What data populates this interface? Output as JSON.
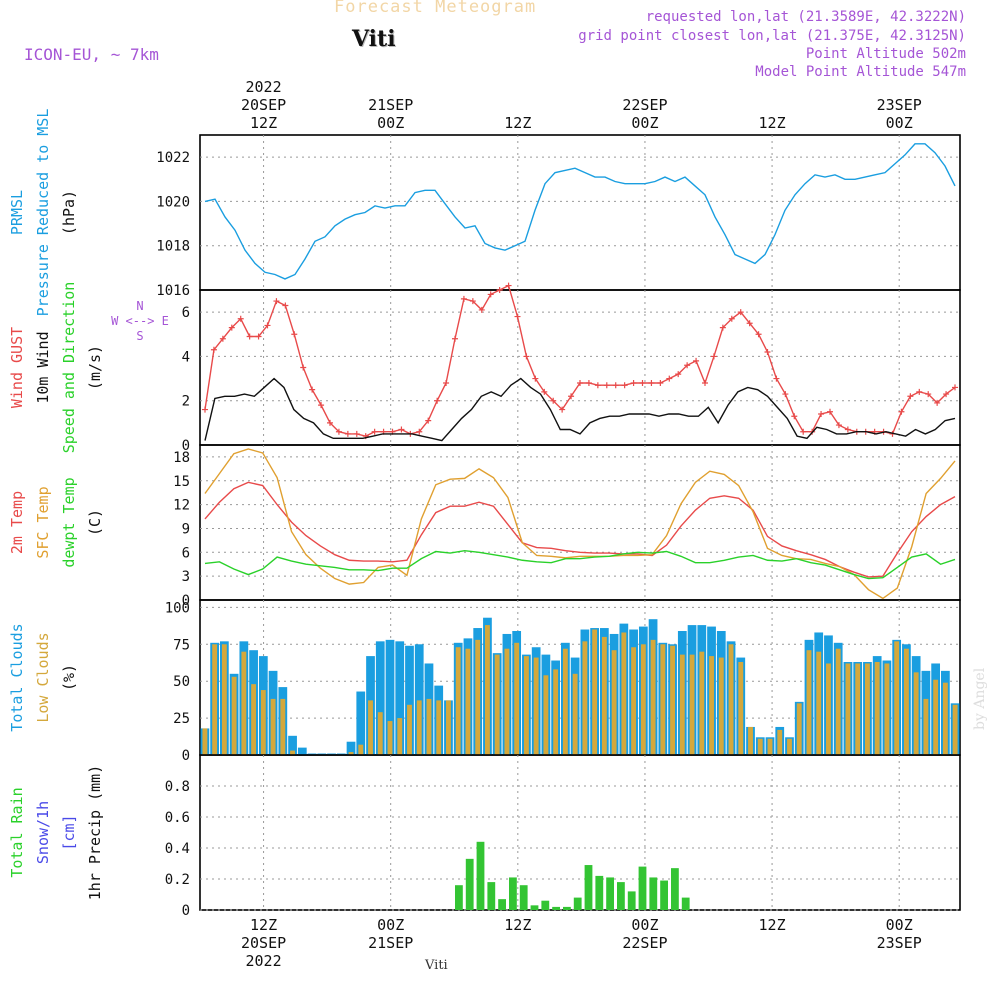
{
  "header": {
    "product": "Forecast Meteogram",
    "station": "Viti",
    "model": "ICON-EU, ~ 7km",
    "requested": "requested lon,lat (21.3589E, 42.3222N)",
    "closest": "grid point closest lon,lat (21.375E, 42.3125N)",
    "point_alt": "Point Altitude 502m",
    "model_alt": "Model Point Altitude 547m",
    "watermark": "by Angel",
    "footer": "Viti"
  },
  "time_axis": {
    "n_steps": 66,
    "top_ticks": [
      {
        "step": 6,
        "lines": [
          "2022",
          "20SEP",
          "12Z"
        ]
      },
      {
        "step": 18,
        "lines": [
          "21SEP",
          "00Z"
        ]
      },
      {
        "step": 30,
        "lines": [
          "12Z"
        ]
      },
      {
        "step": 42,
        "lines": [
          "22SEP",
          "00Z"
        ]
      },
      {
        "step": 54,
        "lines": [
          "12Z"
        ]
      },
      {
        "step": 66,
        "lines": [
          "23SEP",
          "00Z"
        ]
      }
    ],
    "bottom_ticks": [
      {
        "step": 6,
        "lines": [
          "12Z",
          "20SEP",
          "2022"
        ]
      },
      {
        "step": 18,
        "lines": [
          "00Z",
          "21SEP"
        ]
      },
      {
        "step": 30,
        "lines": [
          "12Z"
        ]
      },
      {
        "step": 42,
        "lines": [
          "00Z",
          "22SEP"
        ]
      },
      {
        "step": 54,
        "lines": [
          "12Z"
        ]
      },
      {
        "step": 66,
        "lines": [
          "00Z",
          "23SEP"
        ]
      }
    ]
  },
  "chart_data": [
    {
      "type": "line",
      "id": "pressure",
      "ylabels": [
        "PRMSL",
        "Pressure Reduced to MSL",
        "(hPa)"
      ],
      "ylim": [
        1016,
        1023
      ],
      "yticks": [
        1016,
        1018,
        1020,
        1022
      ],
      "series": [
        {
          "name": "PRMSL",
          "color": "#1a9ee0",
          "values": [
            1020.0,
            1020.1,
            1019.3,
            1018.7,
            1017.8,
            1017.2,
            1016.8,
            1016.7,
            1016.5,
            1016.7,
            1017.4,
            1018.2,
            1018.4,
            1018.9,
            1019.2,
            1019.4,
            1019.5,
            1019.8,
            1019.7,
            1019.8,
            1019.8,
            1020.4,
            1020.5,
            1020.5,
            1019.9,
            1019.3,
            1018.8,
            1018.9,
            1018.1,
            1017.9,
            1017.8,
            1018.0,
            1018.2,
            1019.6,
            1020.8,
            1021.3,
            1021.4,
            1021.5,
            1021.3,
            1021.1,
            1021.1,
            1020.9,
            1020.8,
            1020.8,
            1020.8,
            1020.9,
            1021.1,
            1020.9,
            1021.1,
            1020.7,
            1020.3,
            1019.3,
            1018.5,
            1017.6,
            1017.4,
            1017.2,
            1017.6,
            1018.5,
            1019.6,
            1020.3,
            1020.8,
            1021.2,
            1021.1,
            1021.2,
            1021.0,
            1021.0,
            1021.1,
            1021.2,
            1021.3,
            1021.7,
            1022.1,
            1022.6,
            1022.6,
            1022.2,
            1021.6,
            1020.7
          ]
        }
      ]
    },
    {
      "type": "line",
      "id": "wind",
      "ylabels": [
        "Wind GUST",
        "10m Wind",
        "Speed and Direction",
        "(m/s)"
      ],
      "compass": [
        "N",
        "W <--> E",
        "S"
      ],
      "ylim": [
        0,
        7
      ],
      "yticks": [
        0,
        2,
        4,
        6
      ],
      "series": [
        {
          "name": "Wind GUST",
          "color": "#e84a4a",
          "marker": "+",
          "values": [
            1.6,
            4.3,
            4.8,
            5.3,
            5.7,
            4.9,
            4.9,
            5.4,
            6.5,
            6.3,
            5.0,
            3.5,
            2.5,
            1.8,
            1.0,
            0.6,
            0.5,
            0.5,
            0.4,
            0.6,
            0.6,
            0.6,
            0.7,
            0.5,
            0.6,
            1.1,
            2.0,
            2.8,
            4.8,
            6.6,
            6.5,
            6.1,
            6.8,
            7.0,
            7.2,
            5.8,
            4.0,
            3.0,
            2.4,
            2.0,
            1.6,
            2.2,
            2.8,
            2.8,
            2.7,
            2.7,
            2.7,
            2.7,
            2.8,
            2.8,
            2.8,
            2.8,
            3.0,
            3.2,
            3.6,
            3.8,
            2.8,
            4.0,
            5.3,
            5.7,
            6.0,
            5.5,
            5.0,
            4.2,
            3.0,
            2.3,
            1.3,
            0.6,
            0.6,
            1.4,
            1.5,
            0.9,
            0.7,
            0.6,
            0.6,
            0.6,
            0.6,
            0.5,
            1.5,
            2.2,
            2.4,
            2.3,
            1.9,
            2.3,
            2.6
          ]
        },
        {
          "name": "10m Wind",
          "color": "#111111",
          "values": [
            0.2,
            2.1,
            2.2,
            2.2,
            2.3,
            2.2,
            2.6,
            3.0,
            2.6,
            1.6,
            1.2,
            1.0,
            0.5,
            0.3,
            0.3,
            0.3,
            0.3,
            0.4,
            0.5,
            0.5,
            0.5,
            0.5,
            0.4,
            0.3,
            0.2,
            0.7,
            1.2,
            1.6,
            2.2,
            2.4,
            2.2,
            2.7,
            3.0,
            2.6,
            2.3,
            1.6,
            0.7,
            0.7,
            0.5,
            1.0,
            1.2,
            1.3,
            1.3,
            1.4,
            1.4,
            1.4,
            1.3,
            1.4,
            1.4,
            1.3,
            1.3,
            1.7,
            1.0,
            1.8,
            2.4,
            2.6,
            2.5,
            2.2,
            1.7,
            1.2,
            0.4,
            0.3,
            0.8,
            0.7,
            0.5,
            0.5,
            0.6,
            0.6,
            0.5,
            0.6,
            0.5,
            0.4,
            0.7,
            0.5,
            0.7,
            1.1,
            1.2
          ]
        }
      ],
      "barb_color_scale": [
        "#8fd000",
        "#e8a000",
        "#20b8d8",
        "#7a1fc8"
      ]
    },
    {
      "type": "line",
      "id": "temperature",
      "ylabels": [
        "2m Temp",
        "SFC Temp",
        "dewpt Temp",
        "(C)"
      ],
      "ylim": [
        0,
        19.5
      ],
      "yticks": [
        0,
        3,
        6,
        9,
        12,
        15,
        18
      ],
      "series": [
        {
          "name": "2m Temp",
          "color": "#e84a4a",
          "values": [
            10.2,
            12.3,
            14.0,
            14.8,
            14.4,
            12.0,
            9.8,
            8.1,
            6.8,
            5.7,
            5.0,
            4.9,
            4.9,
            4.8,
            5.0,
            8.2,
            11.0,
            11.8,
            11.8,
            12.3,
            11.8,
            9.5,
            7.2,
            6.6,
            6.5,
            6.2,
            6.0,
            5.9,
            5.9,
            5.8,
            5.8,
            5.6,
            6.9,
            9.3,
            11.3,
            12.8,
            13.1,
            12.8,
            11.3,
            8.0,
            6.8,
            6.2,
            5.7,
            5.1,
            4.2,
            3.5,
            2.9,
            3.0,
            5.9,
            8.6,
            10.5,
            12.0,
            13.0
          ]
        },
        {
          "name": "SFC Temp",
          "color": "#e0a030",
          "values": [
            13.4,
            15.9,
            18.4,
            19.0,
            18.5,
            15.4,
            8.6,
            5.7,
            4.0,
            2.7,
            2.0,
            2.2,
            4.1,
            4.4,
            3.1,
            10.2,
            14.5,
            15.2,
            15.3,
            16.5,
            15.4,
            12.9,
            7.2,
            5.6,
            5.5,
            5.3,
            5.5,
            5.5,
            5.5,
            5.6,
            5.6,
            5.7,
            8.1,
            12.1,
            14.8,
            16.2,
            15.8,
            14.4,
            11.1,
            6.5,
            5.6,
            5.2,
            5.1,
            4.6,
            4.2,
            3.2,
            1.3,
            0.2,
            1.5,
            6.7,
            13.4,
            15.3,
            17.5
          ]
        },
        {
          "name": "dewpt Temp",
          "color": "#2ad12a",
          "values": [
            4.6,
            4.8,
            3.9,
            3.2,
            3.9,
            5.4,
            4.9,
            4.5,
            4.3,
            4.1,
            3.8,
            3.8,
            3.7,
            4.0,
            4.0,
            5.2,
            6.1,
            5.9,
            6.2,
            6.0,
            5.7,
            5.4,
            5.0,
            4.8,
            4.7,
            5.2,
            5.2,
            5.4,
            5.5,
            5.8,
            6.0,
            5.9,
            6.1,
            5.5,
            4.7,
            4.7,
            5.0,
            5.4,
            5.6,
            5.0,
            4.9,
            5.2,
            4.7,
            4.4,
            3.8,
            3.2,
            2.7,
            2.8,
            4.1,
            5.4,
            5.8,
            4.5,
            5.1
          ]
        }
      ]
    },
    {
      "type": "bar",
      "id": "clouds",
      "ylabels": [
        "Total Clouds",
        "Low Clouds",
        "(%)"
      ],
      "ylim": [
        0,
        105
      ],
      "yticks": [
        0,
        25,
        50,
        75,
        100
      ],
      "series": [
        {
          "name": "Total Clouds",
          "color": "#1a9ee0",
          "values": [
            18,
            76,
            77,
            55,
            77,
            71,
            67,
            57,
            46,
            13,
            5,
            1,
            1,
            1,
            1,
            9,
            43,
            67,
            77,
            78,
            77,
            74,
            75,
            62,
            47,
            37,
            76,
            79,
            86,
            93,
            69,
            82,
            84,
            68,
            73,
            68,
            64,
            76,
            66,
            85,
            86,
            86,
            82,
            89,
            85,
            87,
            92,
            76,
            75,
            84,
            88,
            88,
            87,
            84,
            77,
            66,
            19,
            12,
            12,
            19,
            12,
            36,
            78,
            83,
            81,
            76,
            63,
            63,
            63,
            67,
            64,
            78,
            75,
            67,
            57,
            62,
            57,
            35
          ]
        },
        {
          "name": "Low Clouds",
          "color": "#d4a83c",
          "values": [
            18,
            75,
            75,
            53,
            70,
            48,
            44,
            38,
            38,
            3,
            0,
            0,
            0,
            0,
            0,
            2,
            7,
            37,
            29,
            23,
            25,
            34,
            37,
            38,
            37,
            37,
            73,
            72,
            78,
            88,
            68,
            72,
            76,
            67,
            66,
            54,
            58,
            72,
            55,
            77,
            85,
            80,
            71,
            83,
            73,
            75,
            78,
            75,
            74,
            68,
            68,
            70,
            67,
            66,
            75,
            63,
            19,
            11,
            11,
            17,
            11,
            35,
            71,
            70,
            62,
            72,
            62,
            62,
            62,
            63,
            62,
            77,
            72,
            56,
            38,
            51,
            49,
            34
          ]
        }
      ]
    },
    {
      "type": "bar",
      "id": "precip",
      "ylabels": [
        "Total Rain",
        "Snow/1h",
        "[cm]",
        "1hr Precip (mm)"
      ],
      "ylim": [
        0,
        1.0
      ],
      "yticks": [
        0,
        0.2,
        0.4,
        0.6,
        0.8
      ],
      "series": [
        {
          "name": "Total Rain",
          "color": "#33c433",
          "values": [
            0.16,
            0.33,
            0.44,
            0.18,
            0.07,
            0.21,
            0.16,
            0.03,
            0.06,
            0.02,
            0.02,
            0.08,
            0.29,
            0.22,
            0.21,
            0.18,
            0.12,
            0.28,
            0.21,
            0.19,
            0.27,
            0.08
          ]
        }
      ]
    }
  ]
}
